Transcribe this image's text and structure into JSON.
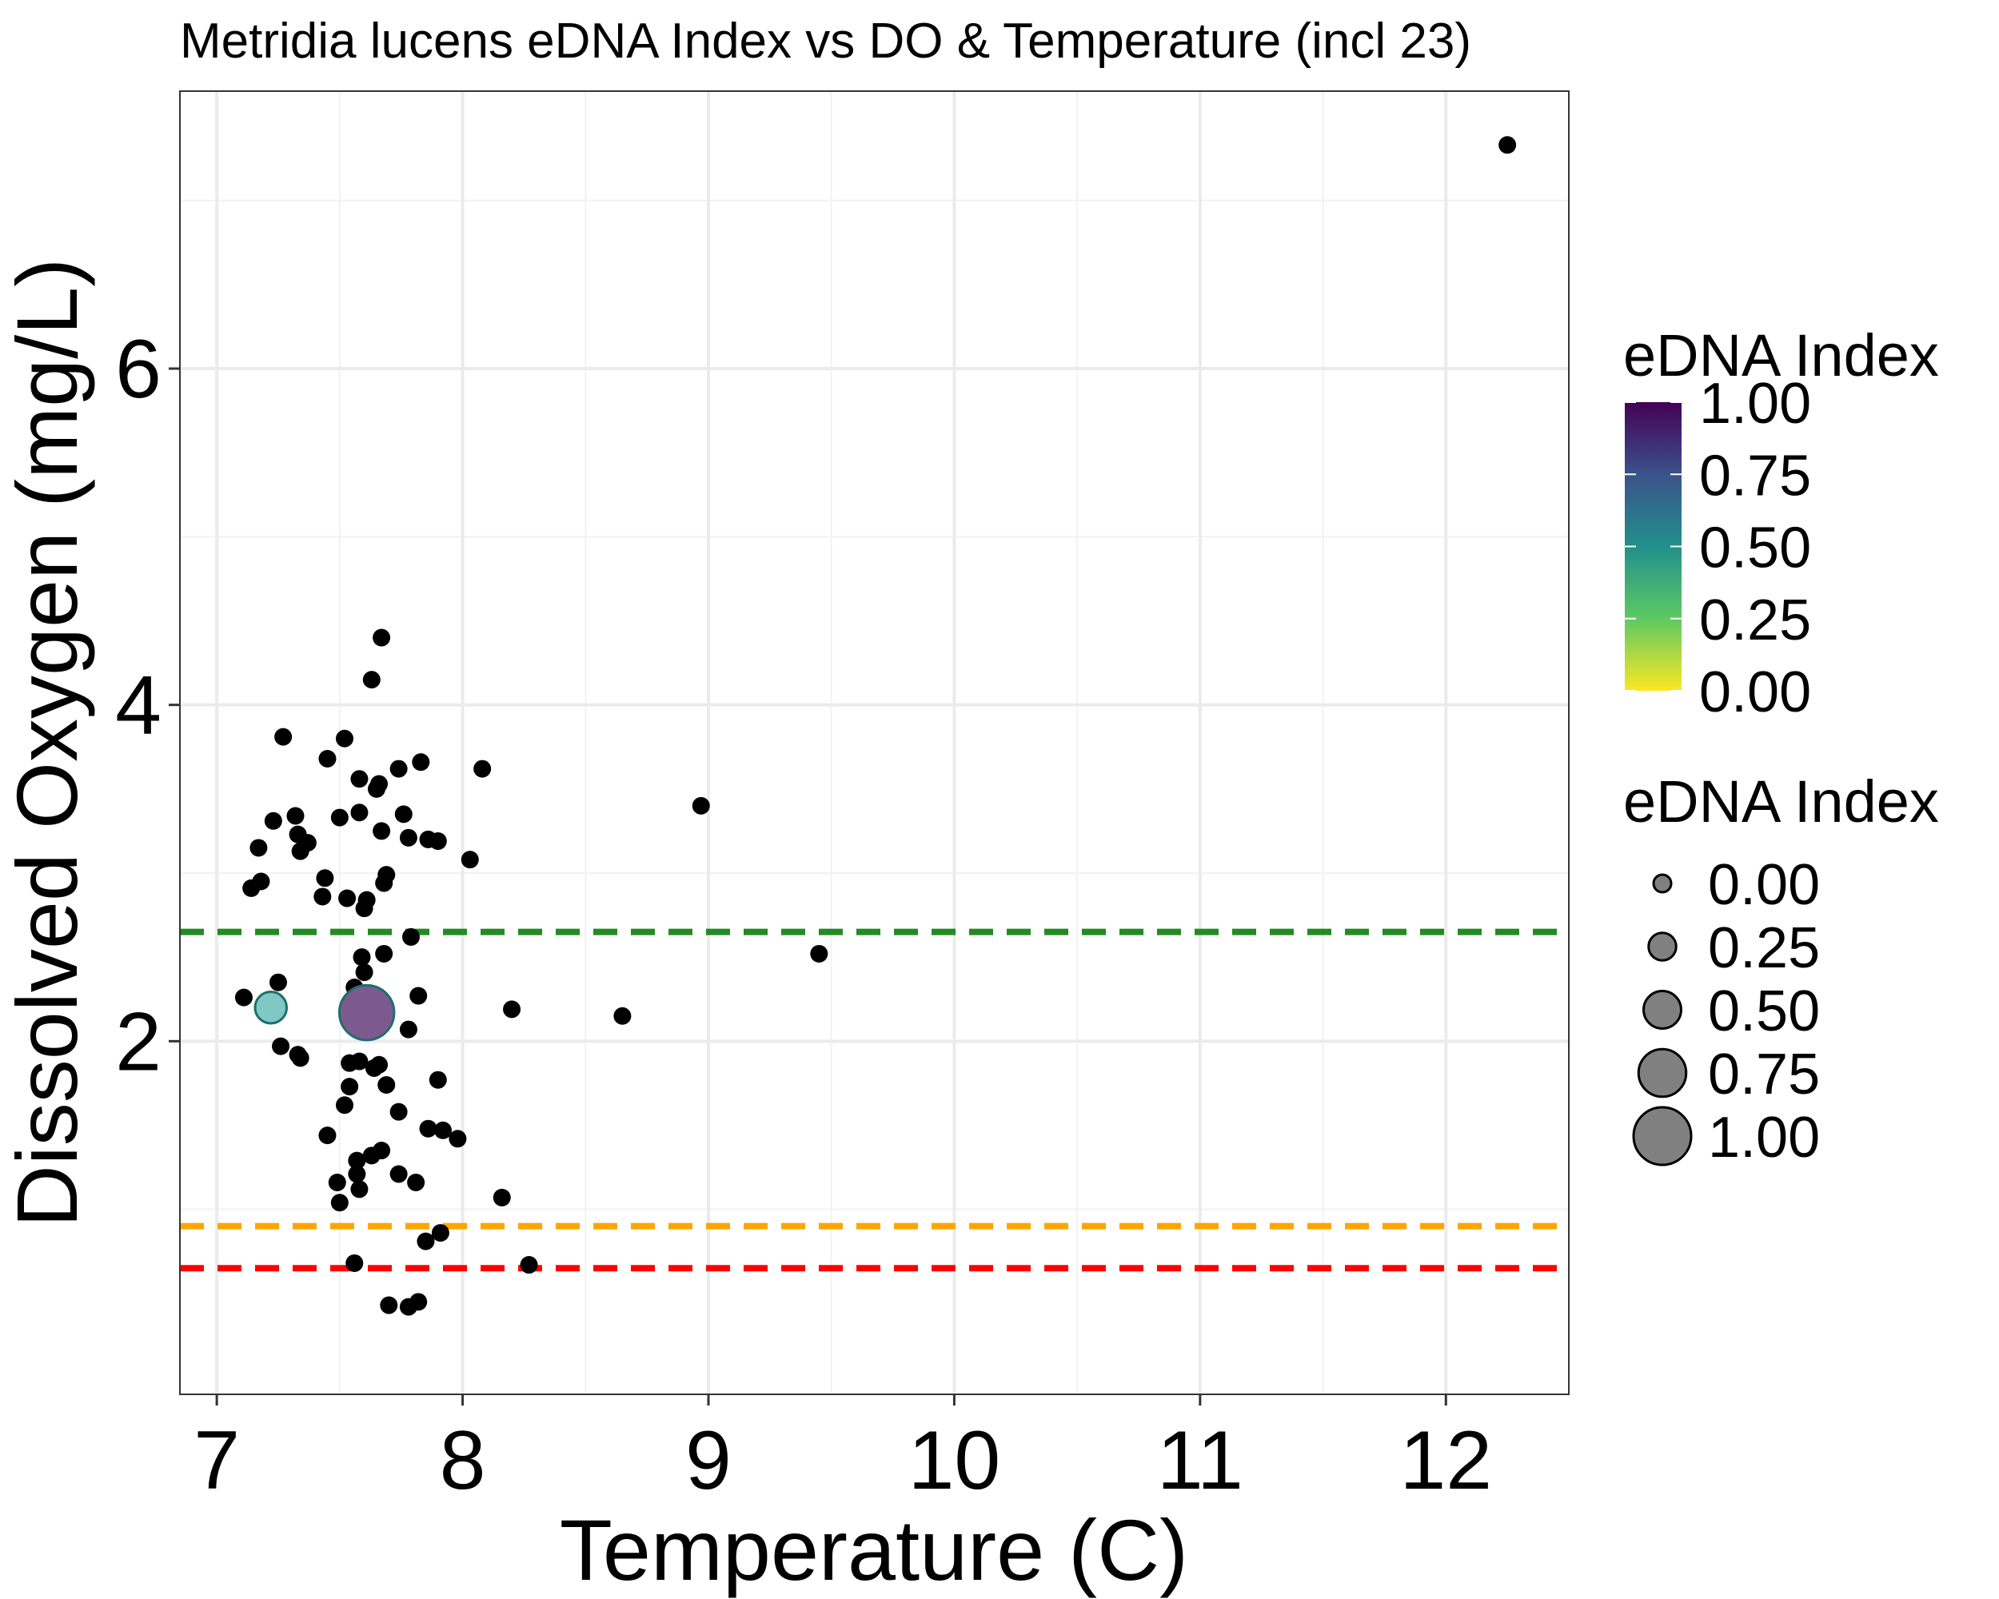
{
  "chart_data": {
    "type": "scatter",
    "title": "Metridia lucens eDNA Index vs DO & Temperature (incl 23)",
    "xlabel": "Temperature (C)",
    "ylabel": "Dissolved Oxygen (mg/L)",
    "xlim": [
      6.85,
      12.5
    ],
    "ylim": [
      -0.1,
      7.65
    ],
    "x_ticks": [
      7,
      8,
      9,
      10,
      11,
      12
    ],
    "x_tick_labels": [
      "7",
      "8",
      "9",
      "10",
      "11",
      "12"
    ],
    "y_ticks": [
      2,
      4,
      6
    ],
    "y_tick_labels": [
      "2",
      "4",
      "6"
    ],
    "grid": true,
    "reference_lines": [
      {
        "y": 2.65,
        "color": "#228B22",
        "style": "dashed"
      },
      {
        "y": 0.9,
        "color": "#FFA500",
        "style": "dashed"
      },
      {
        "y": 0.65,
        "color": "#FF0000",
        "style": "dashed"
      }
    ],
    "points_zero": [
      [
        12.25,
        7.33
      ],
      [
        7.67,
        4.4
      ],
      [
        7.63,
        4.15
      ],
      [
        7.27,
        3.81
      ],
      [
        7.52,
        3.8
      ],
      [
        7.45,
        3.68
      ],
      [
        7.83,
        3.66
      ],
      [
        8.08,
        3.62
      ],
      [
        7.74,
        3.62
      ],
      [
        7.58,
        3.56
      ],
      [
        7.66,
        3.53
      ],
      [
        7.65,
        3.5
      ],
      [
        8.97,
        3.4
      ],
      [
        7.58,
        3.36
      ],
      [
        7.76,
        3.35
      ],
      [
        7.32,
        3.34
      ],
      [
        7.5,
        3.33
      ],
      [
        7.23,
        3.31
      ],
      [
        7.67,
        3.25
      ],
      [
        7.33,
        3.23
      ],
      [
        7.78,
        3.21
      ],
      [
        7.86,
        3.2
      ],
      [
        7.9,
        3.19
      ],
      [
        7.37,
        3.18
      ],
      [
        7.17,
        3.15
      ],
      [
        7.34,
        3.13
      ],
      [
        8.03,
        3.08
      ],
      [
        7.69,
        2.99
      ],
      [
        7.44,
        2.97
      ],
      [
        7.18,
        2.95
      ],
      [
        7.68,
        2.94
      ],
      [
        7.14,
        2.91
      ],
      [
        7.43,
        2.86
      ],
      [
        7.53,
        2.85
      ],
      [
        7.61,
        2.84
      ],
      [
        7.6,
        2.79
      ],
      [
        7.79,
        2.62
      ],
      [
        9.45,
        2.52
      ],
      [
        7.68,
        2.52
      ],
      [
        7.59,
        2.5
      ],
      [
        7.6,
        2.41
      ],
      [
        7.25,
        2.35
      ],
      [
        7.56,
        2.32
      ],
      [
        7.11,
        2.26
      ],
      [
        7.82,
        2.27
      ],
      [
        7.59,
        2.25
      ],
      [
        8.2,
        2.19
      ],
      [
        8.65,
        2.15
      ],
      [
        7.64,
        2.13
      ],
      [
        7.62,
        2.12
      ],
      [
        7.6,
        2.08
      ],
      [
        7.78,
        2.07
      ],
      [
        7.26,
        1.97
      ],
      [
        7.33,
        1.92
      ],
      [
        7.34,
        1.9
      ],
      [
        7.58,
        1.88
      ],
      [
        7.54,
        1.87
      ],
      [
        7.66,
        1.86
      ],
      [
        7.64,
        1.84
      ],
      [
        7.9,
        1.77
      ],
      [
        7.69,
        1.74
      ],
      [
        7.54,
        1.73
      ],
      [
        7.52,
        1.62
      ],
      [
        7.74,
        1.58
      ],
      [
        7.86,
        1.48
      ],
      [
        7.92,
        1.47
      ],
      [
        7.45,
        1.44
      ],
      [
        7.98,
        1.42
      ],
      [
        7.67,
        1.35
      ],
      [
        7.63,
        1.32
      ],
      [
        7.57,
        1.29
      ],
      [
        7.57,
        1.21
      ],
      [
        7.74,
        1.21
      ],
      [
        7.81,
        1.16
      ],
      [
        7.49,
        1.16
      ],
      [
        7.58,
        1.12
      ],
      [
        8.16,
        1.07
      ],
      [
        7.5,
        1.04
      ],
      [
        7.91,
        0.86
      ],
      [
        7.85,
        0.81
      ],
      [
        7.56,
        0.68
      ],
      [
        8.27,
        0.67
      ],
      [
        7.82,
        0.45
      ],
      [
        7.7,
        0.43
      ],
      [
        7.78,
        0.42
      ]
    ],
    "points_nonzero": [
      {
        "x": 7.22,
        "y": 2.2,
        "edna_index": 0.35,
        "color": "#7fc8c4"
      },
      {
        "x": 7.61,
        "y": 2.17,
        "edna_index": 0.93,
        "color": "#7c5a90"
      }
    ],
    "legend_color": {
      "title": "eDNA Index",
      "labels": [
        "1.00",
        "0.75",
        "0.50",
        "0.25",
        "0.00"
      ],
      "placement": "right",
      "colors": [
        "#440154",
        "#3b528b",
        "#21908c",
        "#5ec962",
        "#fde725"
      ]
    },
    "legend_size": {
      "title": "eDNA Index",
      "labels": [
        "0.00",
        "0.25",
        "0.50",
        "0.75",
        "1.00"
      ],
      "values": [
        0,
        0.25,
        0.5,
        0.75,
        1.0
      ],
      "placement": "right"
    }
  }
}
